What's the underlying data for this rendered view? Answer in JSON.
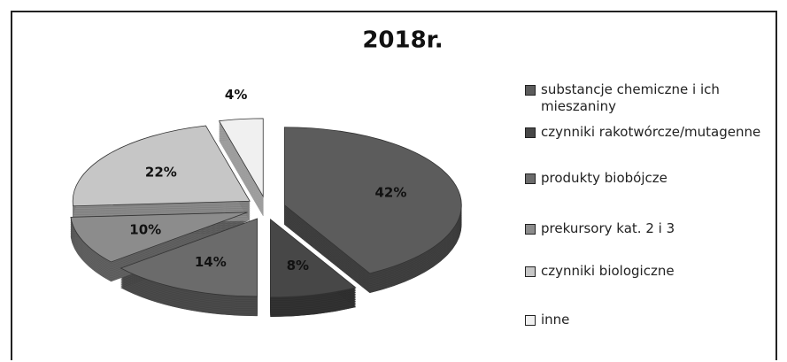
{
  "chart_data": {
    "type": "pie",
    "title": "2018r.",
    "categories": [
      "substancje chemiczne i ich mieszaniny",
      "czynniki rakotwórcze/mutagenne",
      "produkty biobójcze",
      "prekursory kat. 2 i 3",
      "czynniki biologiczne",
      "inne"
    ],
    "values": [
      42,
      8,
      14,
      10,
      22,
      4
    ],
    "value_labels": [
      "42%",
      "8%",
      "14%",
      "10%",
      "22%",
      "4%"
    ],
    "colors": [
      "#5c5c5c",
      "#474747",
      "#6b6b6b",
      "#8c8c8c",
      "#c6c6c6",
      "#f0f0f0"
    ],
    "legend": "right"
  }
}
